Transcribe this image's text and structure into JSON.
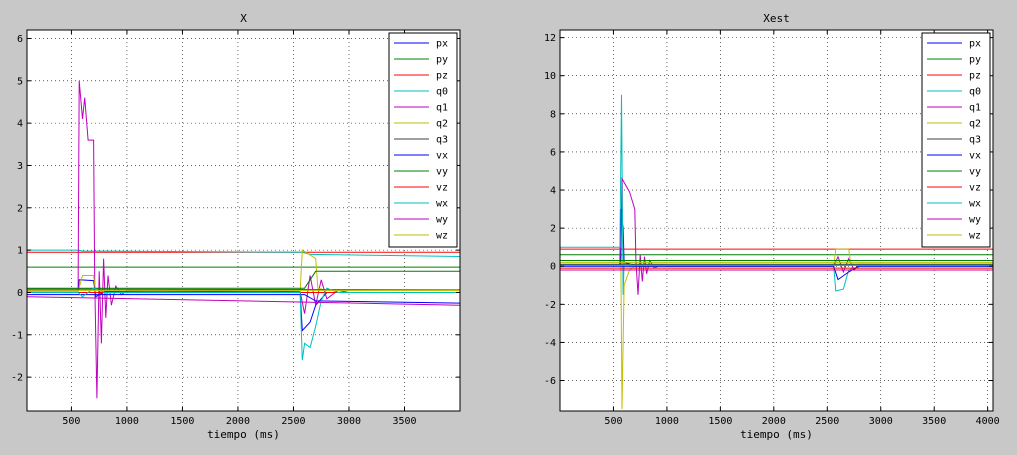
{
  "chart_data": [
    {
      "type": "line",
      "title": "X",
      "xlabel": "tiempo (ms)",
      "ylabel": "",
      "xlim": [
        100,
        4000
      ],
      "ylim": [
        -2.8,
        6.2
      ],
      "xticks": [
        500,
        1000,
        1500,
        2000,
        2500,
        3000,
        3500
      ],
      "yticks": [
        -2,
        -1,
        0,
        1,
        2,
        3,
        4,
        5,
        6
      ],
      "grid": true,
      "legend_position": "top-right",
      "series": [
        {
          "name": "px",
          "color": "#0000ff",
          "points": [
            [
              100,
              0
            ],
            [
              560,
              0
            ],
            [
              570,
              0.3
            ],
            [
              700,
              0.28
            ],
            [
              720,
              -0.1
            ],
            [
              800,
              0.02
            ],
            [
              2560,
              0
            ],
            [
              2580,
              -0.9
            ],
            [
              2650,
              -0.7
            ],
            [
              2700,
              -0.3
            ],
            [
              2800,
              0
            ],
            [
              4000,
              0
            ]
          ]
        },
        {
          "name": "py",
          "color": "#007f00",
          "points": [
            [
              100,
              0.6
            ],
            [
              4000,
              0.6
            ]
          ]
        },
        {
          "name": "pz",
          "color": "#ff0000",
          "points": [
            [
              100,
              0.95
            ],
            [
              4000,
              0.95
            ]
          ]
        },
        {
          "name": "q0",
          "color": "#00bfbf",
          "points": [
            [
              100,
              1.0
            ],
            [
              550,
              1.0
            ],
            [
              600,
              0.98
            ],
            [
              2580,
              0.95
            ],
            [
              2650,
              0.9
            ],
            [
              4000,
              0.85
            ]
          ]
        },
        {
          "name": "q1",
          "color": "#bf00bf",
          "points": [
            [
              100,
              0.05
            ],
            [
              560,
              0.05
            ],
            [
              570,
              5.0
            ],
            [
              600,
              4.1
            ],
            [
              620,
              4.6
            ],
            [
              650,
              3.6
            ],
            [
              700,
              3.6
            ],
            [
              710,
              0.3
            ],
            [
              730,
              -2.5
            ],
            [
              750,
              0.5
            ],
            [
              770,
              -1.2
            ],
            [
              790,
              0.8
            ],
            [
              810,
              -0.6
            ],
            [
              830,
              0.4
            ],
            [
              860,
              -0.3
            ],
            [
              900,
              0.15
            ],
            [
              950,
              -0.05
            ],
            [
              1000,
              0.05
            ],
            [
              2560,
              0.02
            ],
            [
              2600,
              -0.5
            ],
            [
              2650,
              0.4
            ],
            [
              2700,
              -0.3
            ],
            [
              2750,
              0.3
            ],
            [
              2800,
              -0.15
            ],
            [
              2900,
              0.05
            ],
            [
              3000,
              0
            ],
            [
              4000,
              0
            ]
          ]
        },
        {
          "name": "q2",
          "color": "#bfbf00",
          "points": [
            [
              100,
              0.02
            ],
            [
              560,
              0.02
            ],
            [
              600,
              0.4
            ],
            [
              700,
              0.4
            ],
            [
              720,
              0
            ],
            [
              2560,
              0
            ],
            [
              2580,
              1.0
            ],
            [
              2700,
              0.8
            ],
            [
              2720,
              0.1
            ],
            [
              2800,
              0.05
            ],
            [
              4000,
              0.05
            ]
          ]
        },
        {
          "name": "q3",
          "color": "#3f3f3f",
          "points": [
            [
              100,
              0.08
            ],
            [
              4000,
              0.06
            ]
          ]
        },
        {
          "name": "vx",
          "color": "#0000ff",
          "points": [
            [
              100,
              -0.05
            ],
            [
              2600,
              -0.05
            ],
            [
              2700,
              -0.2
            ],
            [
              4000,
              -0.25
            ]
          ]
        },
        {
          "name": "vy",
          "color": "#007f00",
          "points": [
            [
              100,
              0.1
            ],
            [
              2600,
              0.1
            ],
            [
              2700,
              0.5
            ],
            [
              4000,
              0.5
            ]
          ]
        },
        {
          "name": "vz",
          "color": "#ff0000",
          "points": [
            [
              100,
              0.0
            ],
            [
              4000,
              0.0
            ]
          ]
        },
        {
          "name": "wx",
          "color": "#00bfbf",
          "points": [
            [
              100,
              0
            ],
            [
              560,
              0
            ],
            [
              600,
              -0.1
            ],
            [
              700,
              0.1
            ],
            [
              800,
              0
            ],
            [
              2560,
              0
            ],
            [
              2580,
              -1.6
            ],
            [
              2600,
              -1.2
            ],
            [
              2650,
              -1.3
            ],
            [
              2700,
              -0.8
            ],
            [
              2750,
              -0.2
            ],
            [
              2800,
              0.1
            ],
            [
              2900,
              0
            ],
            [
              4000,
              0
            ]
          ]
        },
        {
          "name": "wy",
          "color": "#bf00bf",
          "points": [
            [
              100,
              -0.1
            ],
            [
              4000,
              -0.3
            ]
          ]
        },
        {
          "name": "wz",
          "color": "#bfbf00",
          "points": [
            [
              100,
              0.05
            ],
            [
              4000,
              0.05
            ]
          ]
        }
      ]
    },
    {
      "type": "line",
      "title": "Xest",
      "xlabel": "tiempo (ms)",
      "ylabel": "",
      "xlim": [
        0,
        4050
      ],
      "ylim": [
        -7.6,
        12.4
      ],
      "xticks": [
        500,
        1000,
        1500,
        2000,
        2500,
        3000,
        3500,
        4000
      ],
      "yticks": [
        -6,
        -4,
        -2,
        0,
        2,
        4,
        6,
        8,
        10,
        12
      ],
      "grid": true,
      "legend_position": "top-right",
      "series": [
        {
          "name": "px",
          "color": "#0000ff",
          "points": [
            [
              0,
              0.05
            ],
            [
              560,
              0.05
            ],
            [
              570,
              3.0
            ],
            [
              590,
              2.0
            ],
            [
              600,
              0.2
            ],
            [
              700,
              0.05
            ],
            [
              4050,
              0.05
            ]
          ]
        },
        {
          "name": "py",
          "color": "#007f00",
          "points": [
            [
              0,
              0.6
            ],
            [
              4050,
              0.6
            ]
          ]
        },
        {
          "name": "pz",
          "color": "#ff0000",
          "points": [
            [
              0,
              0.9
            ],
            [
              4050,
              0.9
            ]
          ]
        },
        {
          "name": "q0",
          "color": "#00bfbf",
          "points": [
            [
              0,
              1.0
            ],
            [
              560,
              1.0
            ],
            [
              575,
              9.0
            ],
            [
              590,
              -1.5
            ],
            [
              600,
              0.2
            ],
            [
              650,
              0
            ],
            [
              2560,
              0
            ],
            [
              2580,
              -1.3
            ],
            [
              2650,
              -1.2
            ],
            [
              2700,
              -0.2
            ],
            [
              2800,
              0
            ],
            [
              4050,
              0
            ]
          ]
        },
        {
          "name": "q1",
          "color": "#bf00bf",
          "points": [
            [
              0,
              0.05
            ],
            [
              570,
              0.05
            ],
            [
              580,
              4.6
            ],
            [
              620,
              4.2
            ],
            [
              650,
              3.9
            ],
            [
              700,
              3.0
            ],
            [
              710,
              0.3
            ],
            [
              730,
              -1.5
            ],
            [
              750,
              0.6
            ],
            [
              770,
              -0.8
            ],
            [
              790,
              0.5
            ],
            [
              810,
              -0.4
            ],
            [
              840,
              0.3
            ],
            [
              880,
              -0.1
            ],
            [
              950,
              0.1
            ],
            [
              1000,
              0
            ],
            [
              2560,
              0
            ],
            [
              2600,
              0.5
            ],
            [
              2650,
              -0.3
            ],
            [
              2700,
              0.4
            ],
            [
              2750,
              -0.2
            ],
            [
              2800,
              0.1
            ],
            [
              4050,
              0.05
            ]
          ]
        },
        {
          "name": "q2",
          "color": "#bfbf00",
          "points": [
            [
              0,
              0.02
            ],
            [
              570,
              0.02
            ],
            [
              580,
              -7.5
            ],
            [
              600,
              -1.0
            ],
            [
              650,
              -0.2
            ],
            [
              700,
              0
            ],
            [
              2560,
              0
            ],
            [
              2580,
              0.9
            ],
            [
              2700,
              0.9
            ],
            [
              2720,
              0.1
            ],
            [
              4050,
              0.1
            ]
          ]
        },
        {
          "name": "q3",
          "color": "#3f3f3f",
          "points": [
            [
              0,
              0.1
            ],
            [
              4050,
              0.1
            ]
          ]
        },
        {
          "name": "vx",
          "color": "#0000ff",
          "points": [
            [
              0,
              0
            ],
            [
              2560,
              0
            ],
            [
              2600,
              -0.7
            ],
            [
              2700,
              -0.3
            ],
            [
              2800,
              0
            ],
            [
              4050,
              0
            ]
          ]
        },
        {
          "name": "vy",
          "color": "#007f00",
          "points": [
            [
              0,
              0.3
            ],
            [
              4050,
              0.3
            ]
          ]
        },
        {
          "name": "vz",
          "color": "#ff0000",
          "points": [
            [
              0,
              -0.1
            ],
            [
              4050,
              -0.1
            ]
          ]
        },
        {
          "name": "wx",
          "color": "#00bfbf",
          "points": [
            [
              0,
              0.05
            ],
            [
              4050,
              0.05
            ]
          ]
        },
        {
          "name": "wy",
          "color": "#bf00bf",
          "points": [
            [
              0,
              -0.2
            ],
            [
              4050,
              -0.2
            ]
          ]
        },
        {
          "name": "wz",
          "color": "#bfbf00",
          "points": [
            [
              0,
              0.2
            ],
            [
              4050,
              0.2
            ]
          ]
        }
      ]
    }
  ]
}
